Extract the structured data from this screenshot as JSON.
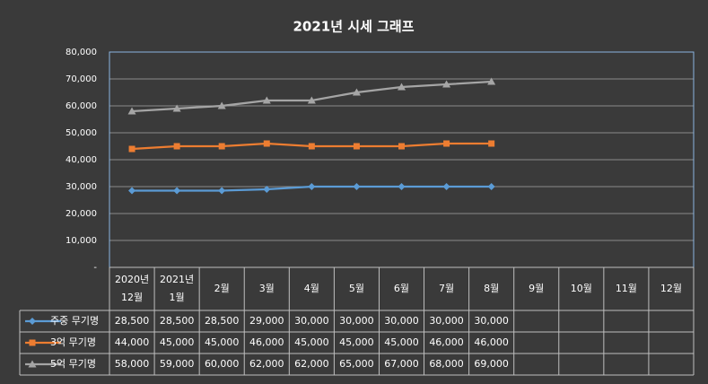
{
  "chart_data": {
    "type": "line",
    "title": "2021년 시세 그래프",
    "categories": [
      "2020년\n12월",
      "2021년\n1월",
      "2월",
      "3월",
      "4월",
      "5월",
      "6월",
      "7월",
      "8월",
      "9월",
      "10월",
      "11월",
      "12월"
    ],
    "series": [
      {
        "name": "주중 무기명",
        "color": "#5b9bd5",
        "marker": "diamond",
        "values": [
          28500,
          28500,
          28500,
          29000,
          30000,
          30000,
          30000,
          30000,
          30000,
          null,
          null,
          null,
          null
        ],
        "value_labels": [
          "28,500",
          "28,500",
          "28,500",
          "29,000",
          "30,000",
          "30,000",
          "30,000",
          "30,000",
          "30,000",
          null,
          null,
          null,
          null
        ]
      },
      {
        "name": "3억 무기명",
        "color": "#ed7d31",
        "marker": "square",
        "values": [
          44000,
          45000,
          45000,
          46000,
          45000,
          45000,
          45000,
          46000,
          46000,
          null,
          null,
          null,
          null
        ],
        "value_labels": [
          "44,000",
          "45,000",
          "45,000",
          "46,000",
          "45,000",
          "45,000",
          "45,000",
          "46,000",
          "46,000",
          null,
          null,
          null,
          null
        ]
      },
      {
        "name": "5억 무기명",
        "color": "#a5a5a5",
        "marker": "triangle",
        "values": [
          58000,
          59000,
          60000,
          62000,
          62000,
          65000,
          67000,
          68000,
          69000,
          null,
          null,
          null,
          null
        ],
        "value_labels": [
          "58,000",
          "59,000",
          "60,000",
          "62,000",
          "62,000",
          "65,000",
          "67,000",
          "68,000",
          "69,000",
          null,
          null,
          null,
          null
        ]
      }
    ],
    "ylim": [
      0,
      80000
    ],
    "yticks": [
      {
        "value": 0,
        "label": "-"
      },
      {
        "value": 10000,
        "label": "10,000"
      },
      {
        "value": 20000,
        "label": "20,000"
      },
      {
        "value": 30000,
        "label": "30,000"
      },
      {
        "value": 40000,
        "label": "40,000"
      },
      {
        "value": 50000,
        "label": "50,000"
      },
      {
        "value": 60000,
        "label": "60,000"
      },
      {
        "value": 70000,
        "label": "70,000"
      },
      {
        "value": 80000,
        "label": "80,000"
      }
    ],
    "grid": true
  }
}
